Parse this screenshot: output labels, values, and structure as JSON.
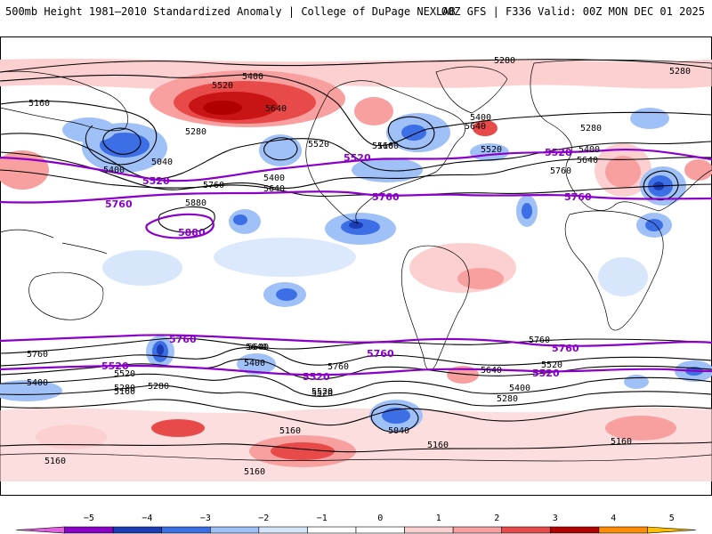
{
  "header": {
    "title": "500mb Height 1981–2010 Standardized Anomaly | College of DuPage NEXLAB",
    "run_info": "00Z GFS | F336 Valid: 00Z MON DEC 01 2025"
  },
  "contour_labels": [
    "5280",
    "5400",
    "5520",
    "5640",
    "5160",
    "5280",
    "5640",
    "5520",
    "5160",
    "5280",
    "5400",
    "5040",
    "5400",
    "5640",
    "5760",
    "5880",
    "5400",
    "5280",
    "5520",
    "5400",
    "5640",
    "5760",
    "5160",
    "5280",
    "5520",
    "5640",
    "5760",
    "5520",
    "5040",
    "5160",
    "5160",
    "5160",
    "5160",
    "5760",
    "5280",
    "5160",
    "5400",
    "5640",
    "5400",
    "5520",
    "5760",
    "5640",
    "5520",
    "5400",
    "5280",
    "5160"
  ],
  "highlight_labels": [
    "5520",
    "5760",
    "5880",
    "5520",
    "5760",
    "5520",
    "5760",
    "5760",
    "5520",
    "5520",
    "5760",
    "5520",
    "5760"
  ],
  "colorbar": {
    "ticks": [
      "−5",
      "−4",
      "−3",
      "−2",
      "−1",
      "0",
      "1",
      "2",
      "3",
      "4",
      "5"
    ],
    "colors": [
      "#e060e0",
      "#8b00c8",
      "#1a3cb4",
      "#3c6ee6",
      "#a0c0f8",
      "#d8e6fb",
      "#ffffff",
      "#ffffff",
      "#fcd0d0",
      "#f8a0a0",
      "#e84a4a",
      "#b00000",
      "#ff8c00",
      "#ffc000"
    ]
  },
  "colors": {
    "highlight_contour": "#8b00c8",
    "contour": "#000000",
    "coastline": "#000000"
  }
}
